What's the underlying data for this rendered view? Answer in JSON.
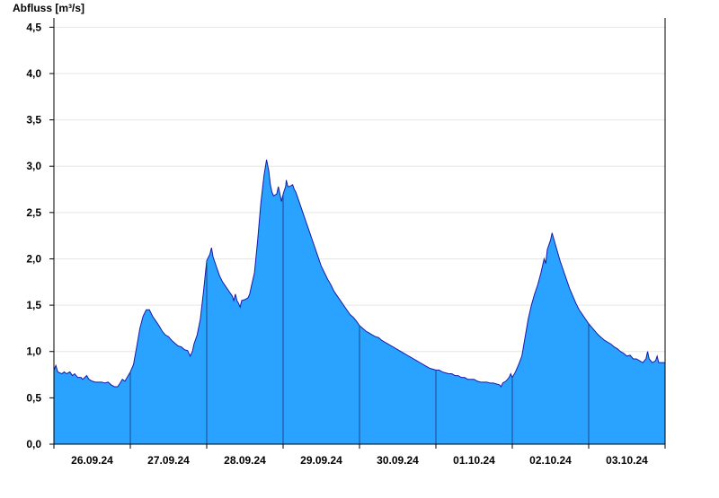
{
  "chart_data": {
    "type": "area",
    "title": "",
    "ylabel": "Abfluss [m³/s]",
    "xlabel": "",
    "ylim": [
      0,
      4.6
    ],
    "y_ticks": [
      {
        "value": 0.0,
        "label": "0,0"
      },
      {
        "value": 0.5,
        "label": "0,5"
      },
      {
        "value": 1.0,
        "label": "1,0"
      },
      {
        "value": 1.5,
        "label": "1,5"
      },
      {
        "value": 2.0,
        "label": "2,0"
      },
      {
        "value": 2.5,
        "label": "2,5"
      },
      {
        "value": 3.0,
        "label": "3,0"
      },
      {
        "value": 3.5,
        "label": "3,5"
      },
      {
        "value": 4.0,
        "label": "4,0"
      },
      {
        "value": 4.5,
        "label": "4,5"
      }
    ],
    "x_unit": "hours since first shown day 00:00",
    "x_range": [
      0,
      192
    ],
    "x_ticks": [
      {
        "label": "26.09.24"
      },
      {
        "label": "27.09.24"
      },
      {
        "label": "28.09.24"
      },
      {
        "label": "29.09.24"
      },
      {
        "label": "30.09.24"
      },
      {
        "label": "01.10.24"
      },
      {
        "label": "02.10.24"
      },
      {
        "label": "03.10.24"
      }
    ],
    "grid": true,
    "colors": {
      "fill": "#29a3ff",
      "line": "#1a1aa6",
      "day_line": "#1a4a8a",
      "grid": "#e6e6e6",
      "axis": "#000000"
    },
    "series": [
      {
        "points": [
          [
            0,
            0.8
          ],
          [
            0.6,
            0.85
          ],
          [
            1.2,
            0.78
          ],
          [
            2.5,
            0.76
          ],
          [
            3.2,
            0.78
          ],
          [
            4,
            0.76
          ],
          [
            5,
            0.78
          ],
          [
            5.8,
            0.74
          ],
          [
            6.5,
            0.76
          ],
          [
            7.5,
            0.72
          ],
          [
            8.5,
            0.72
          ],
          [
            9,
            0.7
          ],
          [
            9.7,
            0.72
          ],
          [
            10.3,
            0.74
          ],
          [
            11,
            0.7
          ],
          [
            12,
            0.68
          ],
          [
            13,
            0.67
          ],
          [
            14,
            0.67
          ],
          [
            15,
            0.67
          ],
          [
            16,
            0.66
          ],
          [
            17,
            0.67
          ],
          [
            18,
            0.64
          ],
          [
            19,
            0.62
          ],
          [
            20,
            0.62
          ],
          [
            20.8,
            0.66
          ],
          [
            21.5,
            0.7
          ],
          [
            22.3,
            0.68
          ],
          [
            23,
            0.72
          ],
          [
            24,
            0.78
          ],
          [
            25,
            0.86
          ],
          [
            26,
            1.05
          ],
          [
            27,
            1.25
          ],
          [
            28,
            1.38
          ],
          [
            29,
            1.45
          ],
          [
            30,
            1.45
          ],
          [
            31,
            1.38
          ],
          [
            32,
            1.33
          ],
          [
            33,
            1.28
          ],
          [
            34,
            1.22
          ],
          [
            35,
            1.18
          ],
          [
            36,
            1.16
          ],
          [
            37,
            1.12
          ],
          [
            38,
            1.09
          ],
          [
            39,
            1.06
          ],
          [
            40,
            1.05
          ],
          [
            41,
            1.02
          ],
          [
            42,
            1.01
          ],
          [
            42.8,
            0.95
          ],
          [
            43.5,
            1.0
          ],
          [
            44,
            1.08
          ],
          [
            45,
            1.18
          ],
          [
            46,
            1.35
          ],
          [
            47,
            1.65
          ],
          [
            48,
            1.98
          ],
          [
            49,
            2.05
          ],
          [
            49.5,
            2.12
          ],
          [
            50,
            2.02
          ],
          [
            51,
            1.92
          ],
          [
            52,
            1.82
          ],
          [
            53,
            1.75
          ],
          [
            54,
            1.7
          ],
          [
            55,
            1.65
          ],
          [
            56,
            1.6
          ],
          [
            56.5,
            1.55
          ],
          [
            57,
            1.62
          ],
          [
            57.5,
            1.55
          ],
          [
            58,
            1.52
          ],
          [
            58.5,
            1.48
          ],
          [
            59,
            1.55
          ],
          [
            60,
            1.56
          ],
          [
            61,
            1.58
          ],
          [
            61.5,
            1.62
          ],
          [
            62,
            1.7
          ],
          [
            63,
            1.85
          ],
          [
            64,
            2.2
          ],
          [
            65,
            2.6
          ],
          [
            66,
            2.9
          ],
          [
            66.8,
            3.07
          ],
          [
            67.5,
            2.95
          ],
          [
            68,
            2.8
          ],
          [
            68.5,
            2.72
          ],
          [
            69,
            2.68
          ],
          [
            70,
            2.7
          ],
          [
            70.5,
            2.78
          ],
          [
            71,
            2.7
          ],
          [
            71.5,
            2.62
          ],
          [
            72,
            2.7
          ],
          [
            72.8,
            2.78
          ],
          [
            73,
            2.85
          ],
          [
            73.5,
            2.78
          ],
          [
            74,
            2.78
          ],
          [
            75,
            2.8
          ],
          [
            75.5,
            2.75
          ],
          [
            76,
            2.72
          ],
          [
            77,
            2.62
          ],
          [
            78,
            2.52
          ],
          [
            79,
            2.42
          ],
          [
            80,
            2.32
          ],
          [
            81,
            2.22
          ],
          [
            82,
            2.12
          ],
          [
            83,
            2.02
          ],
          [
            84,
            1.92
          ],
          [
            85,
            1.85
          ],
          [
            86,
            1.78
          ],
          [
            87,
            1.72
          ],
          [
            88,
            1.65
          ],
          [
            89,
            1.6
          ],
          [
            90,
            1.55
          ],
          [
            91,
            1.5
          ],
          [
            92,
            1.45
          ],
          [
            93,
            1.4
          ],
          [
            94,
            1.37
          ],
          [
            95,
            1.33
          ],
          [
            96,
            1.28
          ],
          [
            97,
            1.25
          ],
          [
            98,
            1.22
          ],
          [
            99,
            1.2
          ],
          [
            100,
            1.18
          ],
          [
            101,
            1.16
          ],
          [
            102,
            1.15
          ],
          [
            103,
            1.12
          ],
          [
            104,
            1.1
          ],
          [
            105,
            1.08
          ],
          [
            106,
            1.06
          ],
          [
            107,
            1.04
          ],
          [
            108,
            1.02
          ],
          [
            109,
            1.0
          ],
          [
            110,
            0.98
          ],
          [
            111,
            0.96
          ],
          [
            112,
            0.94
          ],
          [
            113,
            0.92
          ],
          [
            114,
            0.9
          ],
          [
            115,
            0.88
          ],
          [
            116,
            0.86
          ],
          [
            117,
            0.84
          ],
          [
            118,
            0.82
          ],
          [
            119,
            0.81
          ],
          [
            120,
            0.8
          ],
          [
            121,
            0.8
          ],
          [
            122,
            0.78
          ],
          [
            123,
            0.77
          ],
          [
            124,
            0.76
          ],
          [
            125,
            0.76
          ],
          [
            126,
            0.74
          ],
          [
            127,
            0.74
          ],
          [
            128,
            0.72
          ],
          [
            129,
            0.72
          ],
          [
            130,
            0.7
          ],
          [
            131,
            0.7
          ],
          [
            132,
            0.7
          ],
          [
            133,
            0.68
          ],
          [
            134,
            0.67
          ],
          [
            135,
            0.67
          ],
          [
            136,
            0.67
          ],
          [
            137,
            0.66
          ],
          [
            138,
            0.66
          ],
          [
            139,
            0.65
          ],
          [
            140,
            0.64
          ],
          [
            140.5,
            0.62
          ],
          [
            141,
            0.66
          ],
          [
            142,
            0.68
          ],
          [
            143,
            0.72
          ],
          [
            143.5,
            0.76
          ],
          [
            144,
            0.72
          ],
          [
            145,
            0.78
          ],
          [
            146,
            0.86
          ],
          [
            147,
            0.95
          ],
          [
            148,
            1.15
          ],
          [
            149,
            1.35
          ],
          [
            150,
            1.5
          ],
          [
            151,
            1.62
          ],
          [
            152,
            1.72
          ],
          [
            153,
            1.85
          ],
          [
            154,
            2.0
          ],
          [
            154.5,
            1.95
          ],
          [
            155,
            2.1
          ],
          [
            156,
            2.2
          ],
          [
            156.5,
            2.28
          ],
          [
            157,
            2.22
          ],
          [
            158,
            2.1
          ],
          [
            159,
            1.98
          ],
          [
            160,
            1.88
          ],
          [
            161,
            1.78
          ],
          [
            162,
            1.68
          ],
          [
            163,
            1.6
          ],
          [
            164,
            1.52
          ],
          [
            165,
            1.45
          ],
          [
            166,
            1.4
          ],
          [
            167,
            1.35
          ],
          [
            168,
            1.3
          ],
          [
            169,
            1.26
          ],
          [
            170,
            1.22
          ],
          [
            171,
            1.18
          ],
          [
            172,
            1.15
          ],
          [
            173,
            1.12
          ],
          [
            174,
            1.1
          ],
          [
            175,
            1.08
          ],
          [
            176,
            1.05
          ],
          [
            177,
            1.03
          ],
          [
            178,
            1.0
          ],
          [
            179,
            0.98
          ],
          [
            180,
            0.95
          ],
          [
            181,
            0.96
          ],
          [
            182,
            0.92
          ],
          [
            183,
            0.92
          ],
          [
            184,
            0.9
          ],
          [
            185,
            0.88
          ],
          [
            186,
            0.92
          ],
          [
            186.5,
            1.0
          ],
          [
            187,
            0.92
          ],
          [
            188,
            0.88
          ],
          [
            189,
            0.9
          ],
          [
            189.5,
            0.95
          ],
          [
            190,
            0.88
          ],
          [
            191,
            0.88
          ],
          [
            192,
            0.88
          ]
        ]
      }
    ]
  }
}
